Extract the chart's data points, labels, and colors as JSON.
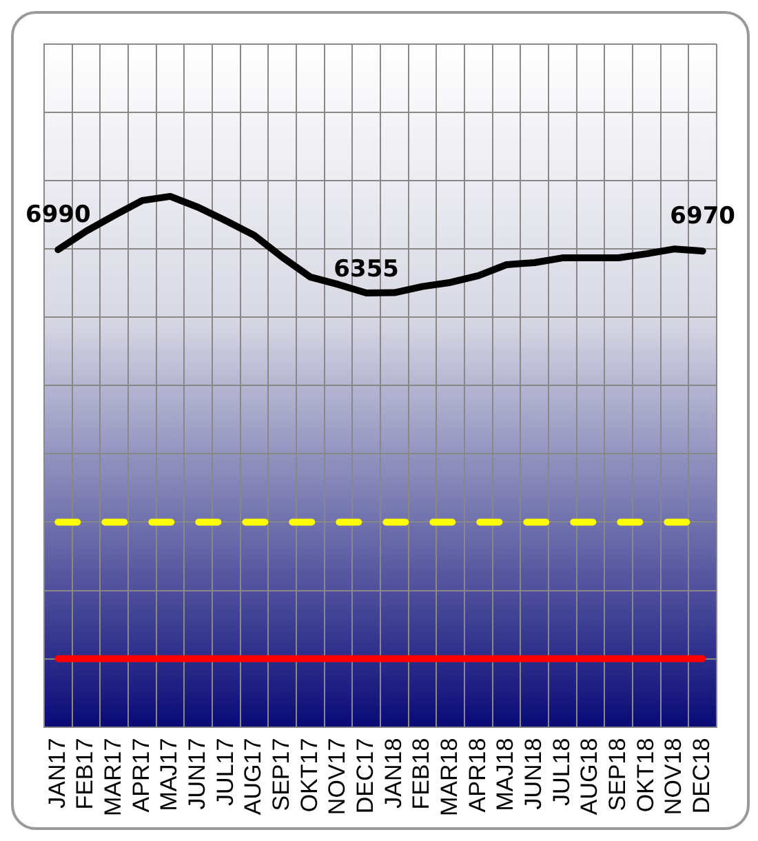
{
  "chart_data": {
    "type": "line",
    "categories": [
      "JAN17",
      "FEB17",
      "MAR17",
      "APR17",
      "MAJ17",
      "JUN17",
      "JUL17",
      "AUG17",
      "SEP17",
      "OKT17",
      "NOV17",
      "DEC17",
      "JAN18",
      "FEB18",
      "MAR18",
      "APR18",
      "MAJ18",
      "JUN18",
      "JUL18",
      "AUG18",
      "SEP18",
      "OKT18",
      "NOV18",
      "DEC18"
    ],
    "series": [
      {
        "color": "#000000",
        "values": [
          6990,
          7260,
          7490,
          7710,
          7770,
          7610,
          7410,
          7200,
          6880,
          6590,
          6480,
          6355,
          6360,
          6450,
          6510,
          6610,
          6770,
          6800,
          6870,
          6870,
          6870,
          6930,
          7000,
          6970
        ],
        "value_labels": [
          "6990",
          null,
          null,
          null,
          null,
          null,
          null,
          null,
          null,
          null,
          null,
          "6355",
          null,
          null,
          null,
          null,
          null,
          null,
          null,
          null,
          null,
          null,
          null,
          "6970"
        ]
      }
    ],
    "ylim": [
      0,
      10000
    ],
    "yticks": [
      {
        "value": 0,
        "label": null
      },
      {
        "value": 1000,
        "label": null
      },
      {
        "value": 2000,
        "label": null
      },
      {
        "value": 3000,
        "label": null
      },
      {
        "value": 4000,
        "label": null
      },
      {
        "value": 5000,
        "label": null
      },
      {
        "value": 6000,
        "label": null
      },
      {
        "value": 7000,
        "label": null
      },
      {
        "value": 8000,
        "label": null
      },
      {
        "value": 9000,
        "label": null
      },
      {
        "value": 10000,
        "label": null
      }
    ],
    "ref_lines": [
      {
        "axis": "y",
        "value": 3000,
        "color": "#ffff00",
        "line_style": "dashed"
      },
      {
        "axis": "y",
        "value": 1000,
        "color": "#ff0000",
        "line_style": "solid"
      }
    ],
    "grid": true,
    "marker": "none",
    "line_style": "solid",
    "legend": false,
    "tick_labels": "x"
  }
}
